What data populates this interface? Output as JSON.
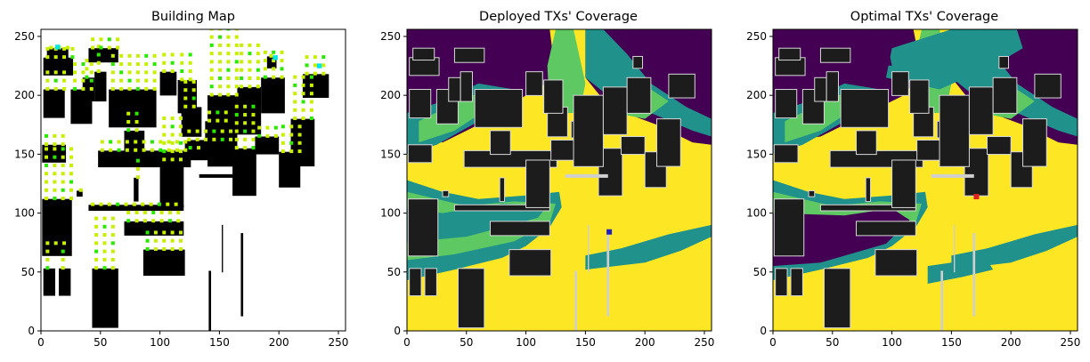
{
  "chart_data": [
    {
      "type": "heatmap",
      "title": "Building Map",
      "xlim": [
        0,
        256
      ],
      "ylim": [
        256,
        0
      ],
      "x_ticks": [
        0,
        50,
        100,
        150,
        200,
        250
      ],
      "y_ticks": [
        0,
        50,
        100,
        150,
        200,
        250
      ],
      "colors": {
        "building": "#000000",
        "free": "#ffffff",
        "candidate": "#c6f000",
        "candidate_alt": "#2be800",
        "selected": "#00e5e5"
      }
    },
    {
      "type": "heatmap",
      "title": "Deployed TXs' Coverage",
      "xlim": [
        0,
        256
      ],
      "ylim": [
        256,
        0
      ],
      "x_ticks": [
        0,
        50,
        100,
        150,
        200,
        250
      ],
      "y_ticks": [
        0,
        50,
        100,
        150,
        200,
        250
      ],
      "tx_marker": {
        "x": 170,
        "y": 84,
        "color": "#2020c0"
      },
      "colors": {
        "high": "#fde725",
        "mid_high": "#5ec962",
        "mid": "#21918c",
        "low": "#440154",
        "building": "#1c1c1c"
      }
    },
    {
      "type": "heatmap",
      "title": "Optimal TXs' Coverage",
      "xlim": [
        0,
        256
      ],
      "ylim": [
        256,
        0
      ],
      "x_ticks": [
        0,
        50,
        100,
        150,
        200,
        250
      ],
      "y_ticks": [
        0,
        50,
        100,
        150,
        200,
        250
      ],
      "tx_marker": {
        "x": 171,
        "y": 114,
        "color": "#e02020"
      },
      "colors": {
        "high": "#fde725",
        "mid_high": "#5ec962",
        "mid": "#21918c",
        "low": "#440154",
        "building": "#1c1c1c"
      }
    }
  ]
}
